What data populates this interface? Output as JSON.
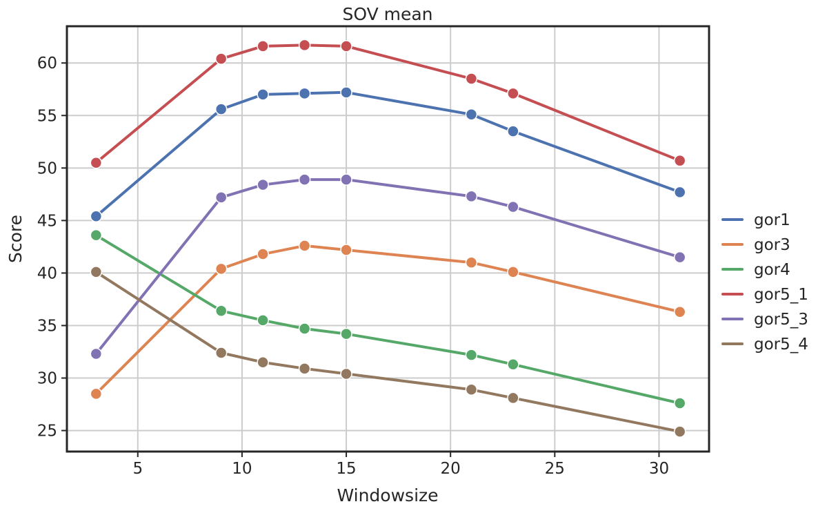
{
  "chart_data": {
    "type": "line",
    "title": "SOV mean",
    "xlabel": "Windowsize",
    "ylabel": "Score",
    "x": [
      3,
      9,
      11,
      13,
      15,
      21,
      23,
      31
    ],
    "xlim": [
      1.6,
      32.4
    ],
    "ylim": [
      23,
      63.5
    ],
    "xticks": [
      5,
      10,
      15,
      20,
      25,
      30
    ],
    "yticks": [
      25,
      30,
      35,
      40,
      45,
      50,
      55,
      60
    ],
    "grid": true,
    "legend_position": "center-right, outside plot",
    "series": [
      {
        "name": "gor1",
        "color": "#4c72b0",
        "values": [
          45.4,
          55.6,
          57.0,
          57.1,
          57.2,
          55.1,
          53.5,
          47.7
        ]
      },
      {
        "name": "gor3",
        "color": "#dd8452",
        "values": [
          28.5,
          40.4,
          41.8,
          42.6,
          42.2,
          41.0,
          40.1,
          36.3
        ]
      },
      {
        "name": "gor4",
        "color": "#55a868",
        "values": [
          43.6,
          36.4,
          35.5,
          34.7,
          34.2,
          32.2,
          31.3,
          27.6
        ]
      },
      {
        "name": "gor5_1",
        "color": "#c44e52",
        "values": [
          50.5,
          60.4,
          61.6,
          61.7,
          61.6,
          58.5,
          57.1,
          50.7
        ]
      },
      {
        "name": "gor5_3",
        "color": "#8172b3",
        "values": [
          32.3,
          47.2,
          48.4,
          48.9,
          48.9,
          47.3,
          46.3,
          41.5
        ]
      },
      {
        "name": "gor5_4",
        "color": "#937860",
        "values": [
          40.1,
          32.4,
          31.5,
          30.9,
          30.4,
          28.9,
          28.1,
          24.9
        ]
      }
    ]
  }
}
